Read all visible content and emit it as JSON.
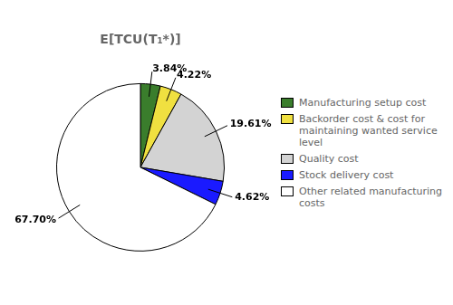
{
  "chart_data": {
    "type": "pie",
    "title": "E[TCU(T₁*)]",
    "categories": [
      "Manufacturing setup cost",
      "Backorder cost & cost for\nmaintaining wanted service level",
      "Quality cost",
      "Stock delivery cost",
      "Other related manufacturing costs"
    ],
    "values": [
      3.84,
      4.22,
      19.61,
      4.62,
      67.7
    ],
    "value_labels": [
      "3.84%",
      "4.22%",
      "19.61%",
      "4.62%",
      "67.70%"
    ],
    "colors": [
      "#3a7d2c",
      "#f0e040",
      "#d3d3d3",
      "#1a1aff",
      "#ffffff"
    ],
    "data_labels": true,
    "legend": "right"
  }
}
